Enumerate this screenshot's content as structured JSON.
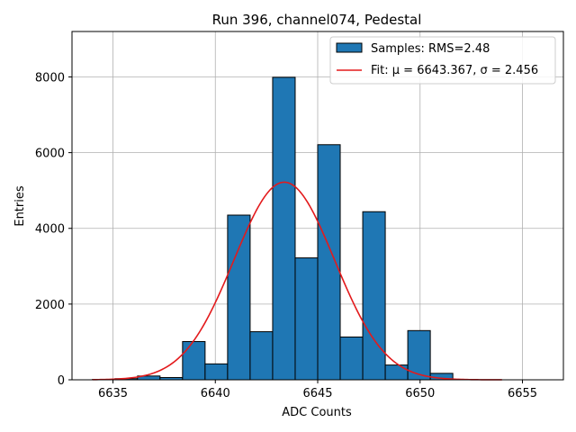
{
  "chart_data": {
    "type": "bar",
    "title": "Run 396, channel074, Pedestal",
    "xlabel": "ADC Counts",
    "ylabel": "Entries",
    "xlim": [
      6633,
      6657
    ],
    "ylim": [
      0,
      9200
    ],
    "xticks": [
      6635,
      6640,
      6645,
      6650,
      6655
    ],
    "yticks": [
      0,
      2000,
      4000,
      6000,
      8000
    ],
    "grid": true,
    "legend_position": "top-right",
    "bin_width": 1.1,
    "bins_start": 6634.0,
    "bins_start_values": [
      6635.1,
      6636.2,
      6637.3,
      6638.4,
      6639.5,
      6640.6,
      6641.7,
      6642.8,
      6643.9,
      6645.0,
      6646.1,
      6647.2,
      6648.3,
      6649.4,
      6650.5
    ],
    "histogram": {
      "name": "Samples: RMS=2.48",
      "color": "#1f77b4",
      "edges": [
        6634.0,
        6635.1,
        6636.2,
        6637.3,
        6638.4,
        6639.5,
        6640.6,
        6641.7,
        6642.8,
        6643.9,
        6645.0,
        6646.1,
        6647.2,
        6648.3,
        6649.4,
        6650.5,
        6651.6
      ],
      "counts": [
        10,
        30,
        100,
        60,
        1010,
        420,
        4350,
        1270,
        7990,
        3220,
        6210,
        1130,
        4440,
        390,
        1300,
        170
      ]
    },
    "fit": {
      "name_prefix": "Fit: ",
      "mu_label": "μ = 6643.367",
      "sigma_label": "σ = 2.456",
      "color": "#e31a1c",
      "mu": 6643.367,
      "sigma": 2.456,
      "amplitude": 5220,
      "x_range": [
        6634,
        6654
      ]
    }
  }
}
